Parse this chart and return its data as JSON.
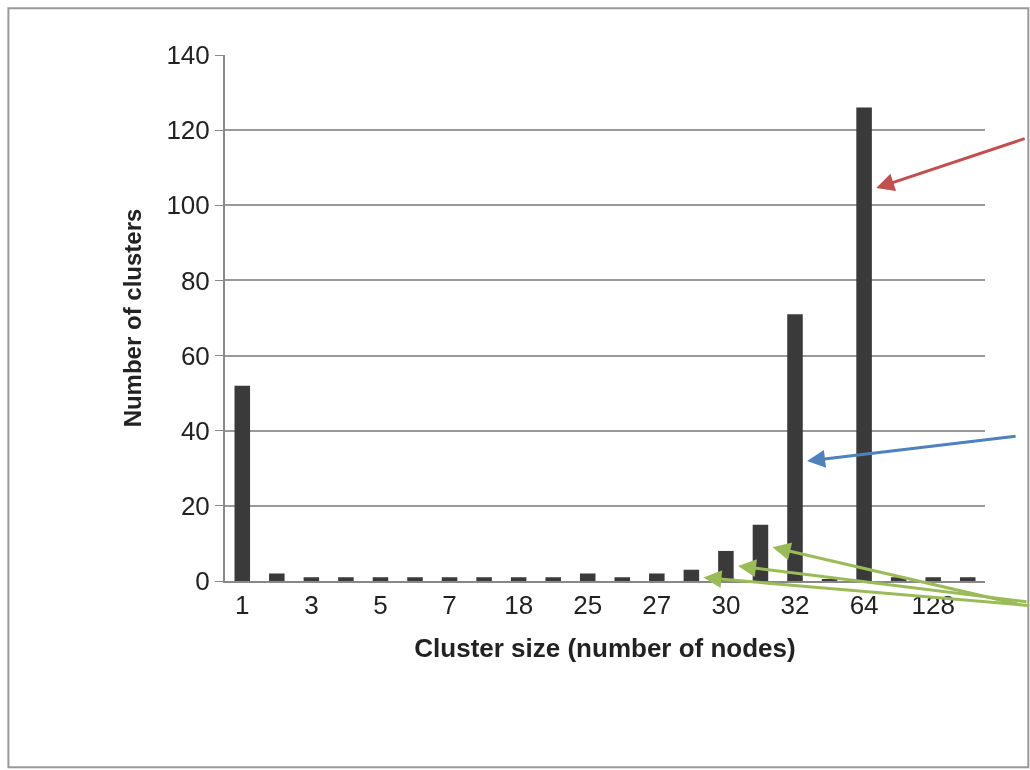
{
  "chart_data": {
    "type": "bar",
    "xlabel": "Cluster size (number of nodes)",
    "ylabel": "Number of clusters",
    "categories": [
      "1",
      null,
      "3",
      null,
      "5",
      null,
      "7",
      null,
      "18",
      null,
      "25",
      null,
      "27",
      null,
      "30",
      null,
      "32",
      null,
      "64",
      null,
      "128",
      null
    ],
    "values": [
      52,
      2,
      1,
      1,
      1,
      1,
      1,
      1,
      1,
      1,
      2,
      1,
      2,
      3,
      8,
      15,
      71,
      0.5,
      126,
      1,
      1,
      1
    ],
    "color": "#3a3a3a",
    "ylim": [
      0,
      140
    ],
    "yticks": [
      0,
      20,
      40,
      60,
      80,
      100,
      120,
      140
    ],
    "grid": "y"
  }
}
